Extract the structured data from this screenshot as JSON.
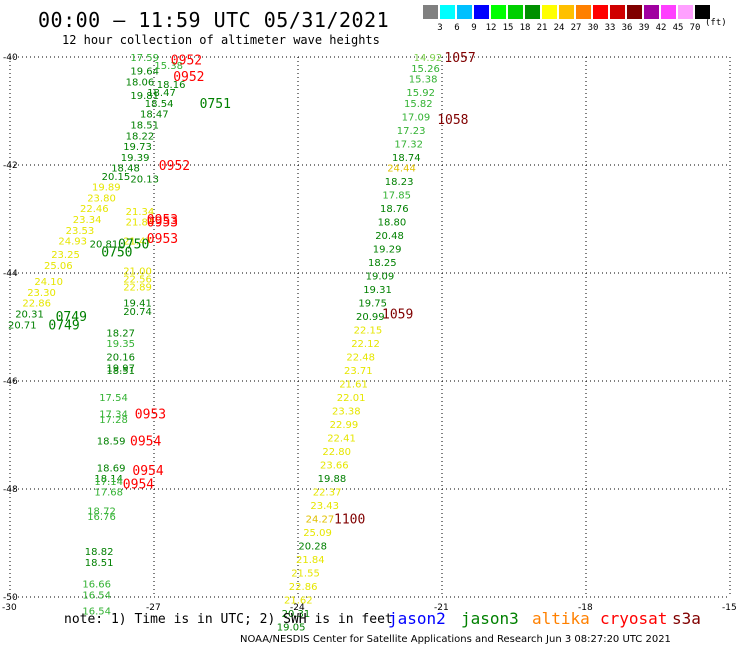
{
  "title": "00:00 — 11:59 UTC 05/31/2021",
  "subtitle": "12 hour collection of altimeter wave heights",
  "legend": {
    "unit": "(ft)",
    "levels": [
      "3",
      "6",
      "9",
      "12",
      "15",
      "18",
      "21",
      "24",
      "27",
      "30",
      "33",
      "36",
      "39",
      "42",
      "45",
      "70"
    ],
    "colors": [
      "#808080",
      "#00ffff",
      "#00c0ff",
      "#0000ff",
      "#00ff00",
      "#00d000",
      "#009000",
      "#ffff00",
      "#ffc000",
      "#ff8000",
      "#ff0000",
      "#d00000",
      "#800000",
      "#a000a0",
      "#ff40ff",
      "#ffa0ff",
      "#000000"
    ]
  },
  "note": "note: 1) Time is in UTC; 2) SWH is in feet",
  "satellites": [
    {
      "name": "jason2",
      "color": "#0000ff"
    },
    {
      "name": "jason3",
      "color": "#008000"
    },
    {
      "name": "altika",
      "color": "#ff8000"
    },
    {
      "name": "cryosat",
      "color": "#ff0000"
    },
    {
      "name": "s3a",
      "color": "#800000"
    }
  ],
  "footer": "NOAA/NESDIS Center for Satellite Applications and Research   Jun  3 08:27:20 UTC 2021",
  "chart_data": {
    "type": "scatter",
    "xlim": [
      -30,
      -15
    ],
    "ylim": [
      -50,
      -40
    ],
    "xticks": [
      "-30",
      "-27",
      "-24",
      "-21",
      "-18",
      "-15"
    ],
    "yticks": [
      "-40",
      "-42",
      "-44",
      "-46",
      "-48",
      "-50"
    ],
    "grid": true,
    "points": [
      {
        "x": -21.3,
        "y": -40.0,
        "label": "14.92",
        "color": "#7fd34f"
      },
      {
        "x": -21.35,
        "y": -40.2,
        "label": "15.26",
        "color": "#33b233"
      },
      {
        "x": -21.4,
        "y": -40.4,
        "label": "15.38",
        "color": "#33b233"
      },
      {
        "x": -21.45,
        "y": -40.65,
        "label": "15.92",
        "color": "#33b233"
      },
      {
        "x": -21.5,
        "y": -40.85,
        "label": "15.82",
        "color": "#33b233"
      },
      {
        "x": -21.55,
        "y": -41.1,
        "label": "17.09",
        "color": "#33b233"
      },
      {
        "x": -21.65,
        "y": -41.35,
        "label": "17.23",
        "color": "#33b233"
      },
      {
        "x": -21.7,
        "y": -41.6,
        "label": "17.32",
        "color": "#33b233"
      },
      {
        "x": -21.75,
        "y": -41.85,
        "label": "18.74",
        "color": "#008000"
      },
      {
        "x": -21.85,
        "y": -42.05,
        "label": "24.44",
        "color": "#e0c000"
      },
      {
        "x": -21.9,
        "y": -42.3,
        "label": "18.23",
        "color": "#008000"
      },
      {
        "x": -21.95,
        "y": -42.55,
        "label": "17.85",
        "color": "#33b233"
      },
      {
        "x": -22.0,
        "y": -42.8,
        "label": "18.76",
        "color": "#008000"
      },
      {
        "x": -22.05,
        "y": -43.05,
        "label": "18.80",
        "color": "#008000"
      },
      {
        "x": -22.1,
        "y": -43.3,
        "label": "20.48",
        "color": "#008000"
      },
      {
        "x": -22.15,
        "y": -43.55,
        "label": "19.29",
        "color": "#008000"
      },
      {
        "x": -22.25,
        "y": -43.8,
        "label": "18.25",
        "color": "#008000"
      },
      {
        "x": -22.3,
        "y": -44.05,
        "label": "19.09",
        "color": "#008000"
      },
      {
        "x": -22.35,
        "y": -44.3,
        "label": "19.31",
        "color": "#008000"
      },
      {
        "x": -22.45,
        "y": -44.55,
        "label": "19.75",
        "color": "#008000"
      },
      {
        "x": -22.5,
        "y": -44.8,
        "label": "20.99",
        "color": "#008000"
      },
      {
        "x": -22.55,
        "y": -45.05,
        "label": "22.15",
        "color": "#e6e600"
      },
      {
        "x": -22.6,
        "y": -45.3,
        "label": "22.12",
        "color": "#e6e600"
      },
      {
        "x": -22.7,
        "y": -45.55,
        "label": "22.48",
        "color": "#e6e600"
      },
      {
        "x": -22.75,
        "y": -45.8,
        "label": "23.71",
        "color": "#e6e600"
      },
      {
        "x": -22.85,
        "y": -46.05,
        "label": "21.61",
        "color": "#e6e600"
      },
      {
        "x": -22.9,
        "y": -46.3,
        "label": "22.01",
        "color": "#e6e600"
      },
      {
        "x": -23.0,
        "y": -46.55,
        "label": "23.38",
        "color": "#e6e600"
      },
      {
        "x": -23.05,
        "y": -46.8,
        "label": "22.99",
        "color": "#e6e600"
      },
      {
        "x": -23.1,
        "y": -47.05,
        "label": "22.41",
        "color": "#e6e600"
      },
      {
        "x": -23.2,
        "y": -47.3,
        "label": "22.80",
        "color": "#e6e600"
      },
      {
        "x": -23.25,
        "y": -47.55,
        "label": "23.66",
        "color": "#e6e600"
      },
      {
        "x": -23.3,
        "y": -47.8,
        "label": "19.88",
        "color": "#008000"
      },
      {
        "x": -23.4,
        "y": -48.05,
        "label": "22.37",
        "color": "#e6e600"
      },
      {
        "x": -23.45,
        "y": -48.3,
        "label": "23.43",
        "color": "#e6e600"
      },
      {
        "x": -23.55,
        "y": -48.55,
        "label": "24.27",
        "color": "#e0c000"
      },
      {
        "x": -23.6,
        "y": -48.8,
        "label": "25.09",
        "color": "#e6e600"
      },
      {
        "x": -23.7,
        "y": -49.05,
        "label": "20.28",
        "color": "#008000"
      },
      {
        "x": -23.75,
        "y": -49.3,
        "label": "21.84",
        "color": "#e6e600"
      },
      {
        "x": -23.85,
        "y": -49.55,
        "label": "21.55",
        "color": "#e6e600"
      },
      {
        "x": -23.9,
        "y": -49.8,
        "label": "22.86",
        "color": "#e6e600"
      },
      {
        "x": -24.0,
        "y": -50.05,
        "label": "21.62",
        "color": "#e6e600"
      },
      {
        "x": -24.05,
        "y": -50.3,
        "label": "20.31",
        "color": "#008000"
      },
      {
        "x": -24.15,
        "y": -50.55,
        "label": "19.05",
        "color": "#008000"
      },
      {
        "x": -27.2,
        "y": -40.0,
        "label": "17.59",
        "color": "#33b233"
      },
      {
        "x": -27.2,
        "y": -40.25,
        "label": "19.64",
        "color": "#008000"
      },
      {
        "x": -27.3,
        "y": -40.45,
        "label": "18.06",
        "color": "#008000"
      },
      {
        "x": -26.7,
        "y": -40.15,
        "label": "15.38",
        "color": "#33b233"
      },
      {
        "x": -26.65,
        "y": -40.5,
        "label": "18.16",
        "color": "#008000"
      },
      {
        "x": -27.2,
        "y": -40.7,
        "label": "19.81",
        "color": "#008000"
      },
      {
        "x": -26.85,
        "y": -40.65,
        "label": "18.47",
        "color": "#008000"
      },
      {
        "x": -26.9,
        "y": -40.85,
        "label": "18.54",
        "color": "#008000"
      },
      {
        "x": -27.0,
        "y": -41.05,
        "label": "18.47",
        "color": "#008000"
      },
      {
        "x": -27.2,
        "y": -41.25,
        "label": "18.51",
        "color": "#008000"
      },
      {
        "x": -27.3,
        "y": -41.45,
        "label": "18.22",
        "color": "#008000"
      },
      {
        "x": -27.35,
        "y": -41.65,
        "label": "19.73",
        "color": "#008000"
      },
      {
        "x": -27.4,
        "y": -41.85,
        "label": "19.39",
        "color": "#008000"
      },
      {
        "x": -27.6,
        "y": -42.05,
        "label": "18.48",
        "color": "#008000"
      },
      {
        "x": -27.8,
        "y": -42.2,
        "label": "20.15",
        "color": "#008000"
      },
      {
        "x": -27.2,
        "y": -42.25,
        "label": "20.13",
        "color": "#008000"
      },
      {
        "x": -28.0,
        "y": -42.4,
        "label": "19.89",
        "color": "#e6e600"
      },
      {
        "x": -28.1,
        "y": -42.6,
        "label": "23.80",
        "color": "#e6e600"
      },
      {
        "x": -28.25,
        "y": -42.8,
        "label": "22.46",
        "color": "#e6e600"
      },
      {
        "x": -28.4,
        "y": -43.0,
        "label": "23.34",
        "color": "#e6e600"
      },
      {
        "x": -28.55,
        "y": -43.2,
        "label": "23.53",
        "color": "#e6e600"
      },
      {
        "x": -28.7,
        "y": -43.4,
        "label": "24.93",
        "color": "#e6e600"
      },
      {
        "x": -28.85,
        "y": -43.65,
        "label": "23.25",
        "color": "#e6e600"
      },
      {
        "x": -29.0,
        "y": -43.85,
        "label": "25.06",
        "color": "#e6e600"
      },
      {
        "x": -29.2,
        "y": -44.15,
        "label": "24.10",
        "color": "#e6e600"
      },
      {
        "x": -29.35,
        "y": -44.35,
        "label": "23.30",
        "color": "#e6e600"
      },
      {
        "x": -29.45,
        "y": -44.55,
        "label": "22.86",
        "color": "#e6e600"
      },
      {
        "x": -29.6,
        "y": -44.75,
        "label": "20.31",
        "color": "#008000"
      },
      {
        "x": -29.75,
        "y": -44.95,
        "label": "20.71",
        "color": "#008000"
      },
      {
        "x": -28.05,
        "y": -43.45,
        "label": "20.81",
        "color": "#008000"
      },
      {
        "x": -27.3,
        "y": -42.85,
        "label": "21.34",
        "color": "#e6e600"
      },
      {
        "x": -27.3,
        "y": -43.05,
        "label": "21.84",
        "color": "#e6e600"
      },
      {
        "x": -27.35,
        "y": -43.4,
        "label": "21.47",
        "color": "#e6e600"
      },
      {
        "x": -27.35,
        "y": -43.95,
        "label": "21.00",
        "color": "#e6e600"
      },
      {
        "x": -27.35,
        "y": -44.1,
        "label": "22.56",
        "color": "#e6e600"
      },
      {
        "x": -27.35,
        "y": -44.25,
        "label": "22.89",
        "color": "#e6e600"
      },
      {
        "x": -27.35,
        "y": -44.55,
        "label": "19.41",
        "color": "#008000"
      },
      {
        "x": -27.35,
        "y": -44.7,
        "label": "20.74",
        "color": "#008000"
      },
      {
        "x": -27.7,
        "y": -45.1,
        "label": "18.27",
        "color": "#008000"
      },
      {
        "x": -27.7,
        "y": -45.3,
        "label": "19.35",
        "color": "#33b233"
      },
      {
        "x": -27.7,
        "y": -45.55,
        "label": "20.16",
        "color": "#008000"
      },
      {
        "x": -27.7,
        "y": -45.75,
        "label": "19.97",
        "color": "#008000"
      },
      {
        "x": -27.7,
        "y": -45.8,
        "label": "18.51",
        "color": "#008000"
      },
      {
        "x": -27.85,
        "y": -46.3,
        "label": "17.54",
        "color": "#33b233"
      },
      {
        "x": -27.85,
        "y": -46.6,
        "label": "17.34",
        "color": "#33b233"
      },
      {
        "x": -27.85,
        "y": -46.7,
        "label": "17.28",
        "color": "#33b233"
      },
      {
        "x": -27.9,
        "y": -47.1,
        "label": "18.59",
        "color": "#008000"
      },
      {
        "x": -27.9,
        "y": -47.6,
        "label": "18.69",
        "color": "#008000"
      },
      {
        "x": -27.95,
        "y": -47.8,
        "label": "18.14",
        "color": "#008000"
      },
      {
        "x": -27.95,
        "y": -47.85,
        "label": "17.14",
        "color": "#33b233"
      },
      {
        "x": -27.95,
        "y": -48.05,
        "label": "17.68",
        "color": "#33b233"
      },
      {
        "x": -28.1,
        "y": -48.4,
        "label": "18.72",
        "color": "#33b233"
      },
      {
        "x": -28.1,
        "y": -48.5,
        "label": "16.76",
        "color": "#33b233"
      },
      {
        "x": -28.15,
        "y": -49.15,
        "label": "18.82",
        "color": "#008000"
      },
      {
        "x": -28.15,
        "y": -49.35,
        "label": "18.51",
        "color": "#008000"
      },
      {
        "x": -28.2,
        "y": -49.75,
        "label": "16.66",
        "color": "#33b233"
      },
      {
        "x": -28.2,
        "y": -49.95,
        "label": "16.54",
        "color": "#33b233"
      },
      {
        "x": -28.2,
        "y": -50.25,
        "label": "16.54",
        "color": "#33b233"
      }
    ],
    "time_labels": [
      {
        "x": -20.95,
        "y": -40.0,
        "label": "1057",
        "color": "#800000"
      },
      {
        "x": -21.1,
        "y": -41.15,
        "label": "1058",
        "color": "#800000"
      },
      {
        "x": -22.25,
        "y": -44.75,
        "label": "1059",
        "color": "#800000"
      },
      {
        "x": -23.25,
        "y": -48.55,
        "label": "1100",
        "color": "#800000"
      },
      {
        "x": -26.65,
        "y": -40.05,
        "label": "0952",
        "color": "#ff0000"
      },
      {
        "x": -26.6,
        "y": -40.35,
        "label": "0952",
        "color": "#ff0000"
      },
      {
        "x": -26.05,
        "y": -40.85,
        "label": "0751",
        "color": "#008000"
      },
      {
        "x": -26.9,
        "y": -42.0,
        "label": "0952",
        "color": "#ff0000"
      },
      {
        "x": -27.15,
        "y": -43.0,
        "label": "0953",
        "color": "#ff0000"
      },
      {
        "x": -27.15,
        "y": -43.05,
        "label": "0953",
        "color": "#ff0000"
      },
      {
        "x": -27.15,
        "y": -43.35,
        "label": "0953",
        "color": "#ff0000"
      },
      {
        "x": -27.75,
        "y": -43.45,
        "label": "0750",
        "color": "#008000"
      },
      {
        "x": -28.1,
        "y": -43.6,
        "label": "0750",
        "color": "#008000"
      },
      {
        "x": -29.05,
        "y": -44.8,
        "label": "0749",
        "color": "#008000"
      },
      {
        "x": -29.2,
        "y": -44.95,
        "label": "0749",
        "color": "#008000"
      },
      {
        "x": -27.4,
        "y": -46.6,
        "label": "0953",
        "color": "#ff0000"
      },
      {
        "x": -27.5,
        "y": -47.1,
        "label": "0954",
        "color": "#ff0000"
      },
      {
        "x": -27.45,
        "y": -47.65,
        "label": "0954",
        "color": "#ff0000"
      },
      {
        "x": -27.65,
        "y": -47.9,
        "label": "0954",
        "color": "#ff0000"
      }
    ]
  }
}
